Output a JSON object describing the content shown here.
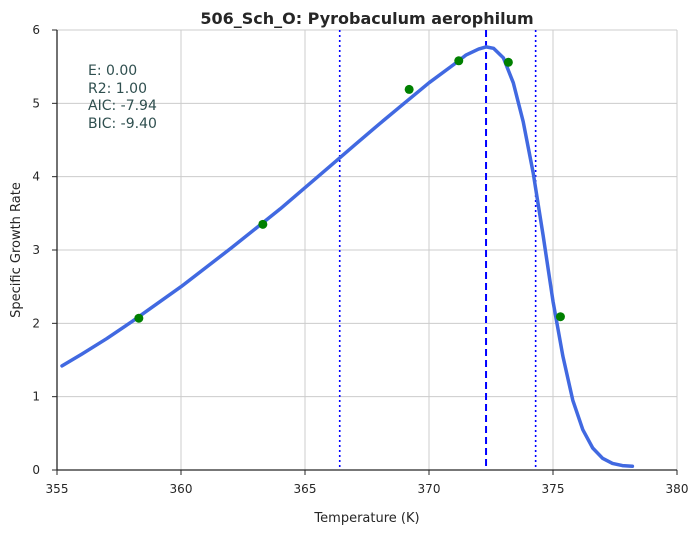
{
  "chart_data": {
    "type": "line",
    "title": "506_Sch_O: Pyrobaculum aerophilum",
    "xlabel": "Temperature (K)",
    "ylabel": "Specific Growth Rate",
    "xlim": [
      355,
      380
    ],
    "ylim": [
      0,
      6
    ],
    "xticks": [
      355,
      360,
      365,
      370,
      375,
      380
    ],
    "yticks": [
      0,
      1,
      2,
      3,
      4,
      5,
      6
    ],
    "grid": true,
    "colors": {
      "fit_line": "#4169e1",
      "points": "#008000",
      "vlines": "#0000ff",
      "grid": "#cccccc",
      "annotation": "#2f4f4f"
    },
    "series": [
      {
        "kind": "line",
        "x": [
          355.2,
          356,
          357,
          358,
          359,
          360,
          361,
          362,
          363,
          364,
          365,
          366,
          367,
          368,
          369,
          370,
          371,
          371.5,
          372,
          372.3,
          372.6,
          373,
          373.4,
          373.8,
          374.2,
          374.6,
          375,
          375.4,
          375.8,
          376.2,
          376.6,
          377,
          377.4,
          377.8,
          378.2
        ],
        "y": [
          1.42,
          1.58,
          1.79,
          2.02,
          2.26,
          2.5,
          2.76,
          3.02,
          3.29,
          3.56,
          3.85,
          4.14,
          4.43,
          4.72,
          5.0,
          5.28,
          5.53,
          5.66,
          5.74,
          5.77,
          5.75,
          5.62,
          5.28,
          4.75,
          4.05,
          3.2,
          2.3,
          1.55,
          0.95,
          0.55,
          0.3,
          0.16,
          0.09,
          0.06,
          0.05
        ]
      },
      {
        "kind": "scatter",
        "x": [
          358.3,
          363.3,
          369.2,
          371.2,
          373.2,
          375.3
        ],
        "y": [
          2.07,
          3.35,
          5.19,
          5.58,
          5.56,
          2.09
        ]
      }
    ],
    "vertical_lines": [
      {
        "x": 366.4,
        "style": "dotted"
      },
      {
        "x": 372.3,
        "style": "dashed"
      },
      {
        "x": 374.3,
        "style": "dotted"
      }
    ],
    "annotations": [
      "E:  0.00",
      "R2:  1.00",
      "AIC: -7.94",
      "BIC: -9.40"
    ]
  }
}
